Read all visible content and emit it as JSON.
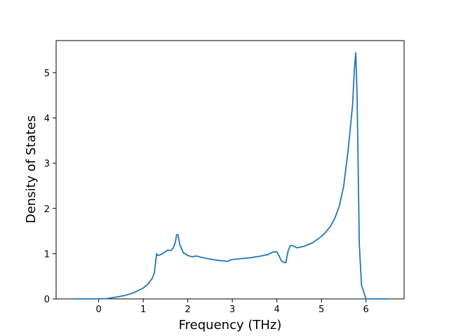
{
  "chart_data": {
    "type": "line",
    "xlabel": "Frequency (THz)",
    "ylabel": "Density of States",
    "x": [
      -0.6,
      -0.3,
      0,
      0.2,
      0.4,
      0.6,
      0.8,
      1.0,
      1.1,
      1.2,
      1.25,
      1.3,
      1.33,
      1.37,
      1.45,
      1.55,
      1.62,
      1.67,
      1.72,
      1.75,
      1.78,
      1.82,
      1.9,
      2.0,
      2.1,
      2.2,
      2.3,
      2.5,
      2.7,
      2.9,
      2.95,
      3.0,
      3.2,
      3.4,
      3.6,
      3.8,
      3.9,
      3.95,
      4.0,
      4.05,
      4.1,
      4.15,
      4.2,
      4.25,
      4.3,
      4.35,
      4.45,
      4.6,
      4.8,
      5.0,
      5.1,
      5.2,
      5.3,
      5.4,
      5.5,
      5.55,
      5.6,
      5.65,
      5.7,
      5.74,
      5.77,
      5.8,
      5.85,
      5.9,
      6.0,
      6.2,
      6.5
    ],
    "values": [
      0,
      0,
      0,
      0.01,
      0.04,
      0.08,
      0.14,
      0.24,
      0.32,
      0.45,
      0.58,
      1.0,
      0.96,
      0.97,
      1.01,
      1.08,
      1.07,
      1.12,
      1.25,
      1.42,
      1.42,
      1.2,
      1.02,
      0.96,
      0.93,
      0.95,
      0.92,
      0.88,
      0.85,
      0.83,
      0.86,
      0.87,
      0.89,
      0.91,
      0.94,
      0.98,
      1.03,
      1.04,
      1.04,
      0.95,
      0.84,
      0.81,
      0.8,
      1.05,
      1.18,
      1.18,
      1.13,
      1.16,
      1.24,
      1.38,
      1.48,
      1.6,
      1.78,
      2.05,
      2.5,
      2.9,
      3.3,
      3.8,
      4.3,
      5.1,
      5.44,
      4.5,
      1.2,
      0.3,
      0,
      0,
      0
    ],
    "color": "#1f77b4",
    "xlim": [
      -0.955,
      6.855
    ],
    "ylim": [
      0,
      5.71
    ],
    "xticks": [
      0,
      1,
      2,
      3,
      4,
      5,
      6
    ],
    "yticks": [
      0,
      1,
      2,
      3,
      4,
      5
    ]
  }
}
